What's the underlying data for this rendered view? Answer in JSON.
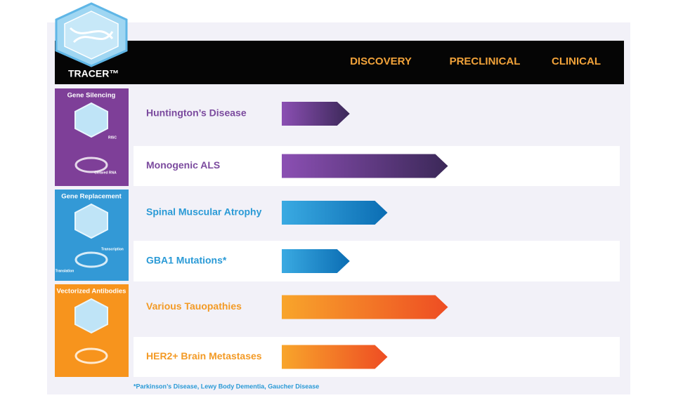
{
  "logo": {
    "name": "TRACER™"
  },
  "stages": [
    "DISCOVERY",
    "PRECLINICAL",
    "CLINICAL"
  ],
  "groups": [
    {
      "label": "Gene Silencing",
      "annotations": [
        "RISC",
        "Cleaved RNA"
      ],
      "programs": [
        {
          "name": "Huntington’s Disease",
          "progress": 0.45
        },
        {
          "name": "Monogenic ALS",
          "progress": 1.1
        }
      ]
    },
    {
      "label": "Gene Replacement",
      "annotations": [
        "Transcription",
        "Translation"
      ],
      "programs": [
        {
          "name": "Spinal Muscular Atrophy",
          "progress": 0.7
        },
        {
          "name": "GBA1 Mutations*",
          "progress": 0.45
        }
      ]
    },
    {
      "label": "Vectorized Antibodies",
      "annotations": [],
      "programs": [
        {
          "name": "Various Tauopathies",
          "progress": 1.1
        },
        {
          "name": "HER2+ Brain Metastases",
          "progress": 0.7
        }
      ]
    }
  ],
  "footnote": "*Parkinson’s Disease, Lewy Body Dementia, Gaucher Disease"
}
